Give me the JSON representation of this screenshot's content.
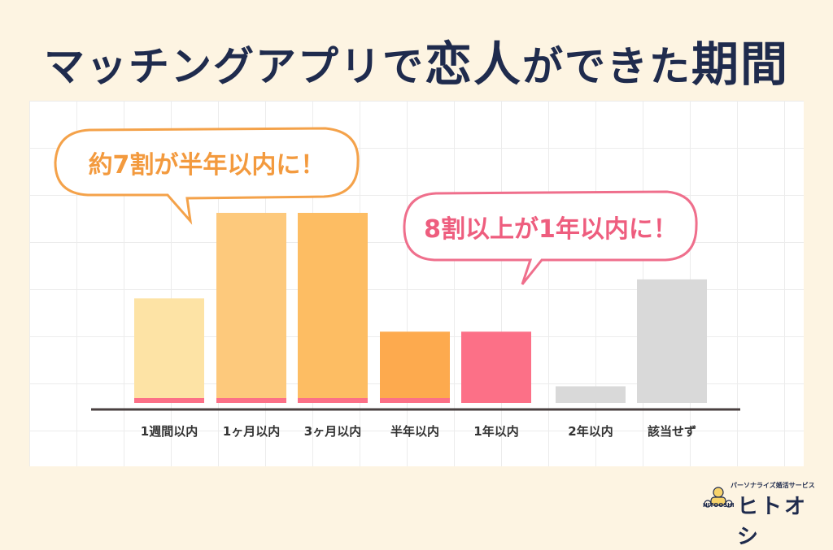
{
  "title": {
    "part1": "マッチングアプリで",
    "part2": "恋人",
    "part3": "ができた",
    "part4": "期間"
  },
  "callouts": {
    "orange": "約7割が半年以内に！",
    "pink": "8割以上が1年以内に！"
  },
  "brand": {
    "tagline": "パーソナライズ婚活サービス",
    "name": "ヒトオシ",
    "mark_text": "HITOOSHI"
  },
  "colors": {
    "bg": "#fdf4e2",
    "title": "#1f2b4d",
    "orange_text": "#f39a3e",
    "pink_text": "#ee5d7e",
    "axis": "#4a4040"
  },
  "chart_data": {
    "type": "bar",
    "categories": [
      "1週間以内",
      "1ヶ月以内",
      "3ヶ月以内",
      "半年以内",
      "1年以内",
      "2年以内",
      "該当せず"
    ],
    "values": [
      22,
      40,
      40,
      15,
      15,
      3.5,
      26
    ],
    "colors": [
      "#fde3a5",
      "#fdc97c",
      "#fdbd63",
      "#fdaa4e",
      "#fc7087",
      "#d9d9d9",
      "#d9d9d9"
    ],
    "pink_baseline": [
      true,
      true,
      true,
      true,
      false,
      false,
      false
    ],
    "ylim": [
      0,
      42
    ],
    "grid": true,
    "title": "マッチングアプリで恋人ができた期間",
    "xlabel": "",
    "ylabel": ""
  }
}
